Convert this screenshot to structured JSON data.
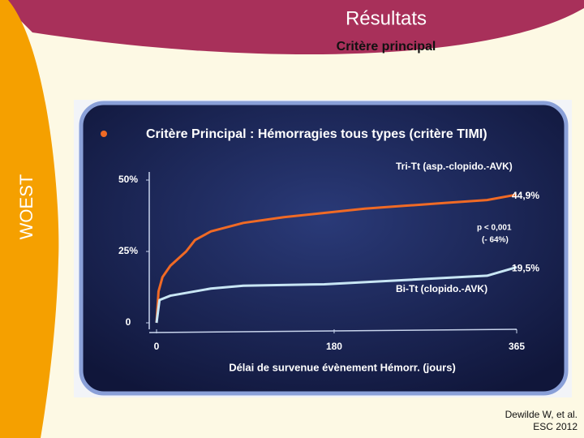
{
  "slide": {
    "title": "Résultats",
    "subtitle": "Critère principal",
    "side_label": "WOEST",
    "citation": [
      "Dewilde W, et al.",
      "ESC 2012"
    ]
  },
  "chart_data": {
    "type": "line",
    "title": "Critère Principal : Hémorragies tous types (critère TIMI)",
    "xlabel": "Délai de survenue évènement Hémorr. (jours)",
    "xlim": [
      0,
      365
    ],
    "xticks": [
      0,
      180,
      365
    ],
    "ylim": [
      0,
      50
    ],
    "yticks": [
      0,
      {
        "value": 25,
        "label": "25%"
      },
      {
        "value": 50,
        "label": "50%"
      }
    ],
    "series": [
      {
        "name": "Tri-Tt (asp.-clopido.-AVK)",
        "color": "#f06a25",
        "x": [
          0,
          2,
          6,
          14,
          30,
          39,
          55,
          88,
          129,
          170,
          211,
          252,
          293,
          335,
          365
        ],
        "values": [
          0,
          11,
          16,
          20,
          25,
          29,
          32,
          35,
          37,
          38.5,
          40,
          41,
          42,
          43,
          44.9
        ],
        "value_labels": [
          null,
          null,
          null,
          null,
          null,
          null,
          null,
          null,
          null,
          null,
          null,
          null,
          null,
          null,
          "44,9%"
        ]
      },
      {
        "name": "Bi-Tt (clopido.-AVK)",
        "color": "#c8e6f4",
        "x": [
          0,
          3,
          14,
          55,
          88,
          170,
          252,
          335,
          365
        ],
        "values": [
          0,
          8,
          9.5,
          12,
          13,
          13.5,
          15,
          16.5,
          19.5
        ],
        "value_labels": [
          null,
          null,
          null,
          null,
          null,
          null,
          null,
          null,
          "19,5%"
        ]
      }
    ],
    "annotations": [
      "p < 0,001",
      "(- 64%)"
    ]
  }
}
